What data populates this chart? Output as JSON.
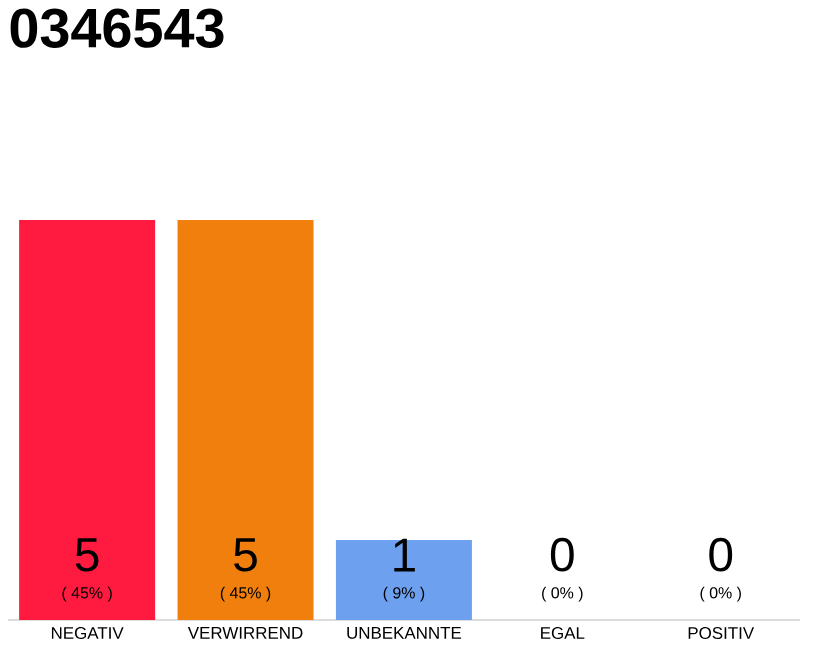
{
  "chart_data": {
    "type": "bar",
    "title": "0346543",
    "categories": [
      "NEGATIV",
      "VERWIRREND",
      "UNBEKANNTE",
      "EGAL",
      "POSITIV"
    ],
    "values": [
      5,
      5,
      1,
      0,
      0
    ],
    "colors": [
      "#ff1a40",
      "#f07f0e",
      "#6ea0f0",
      "#efefef",
      "#efefef"
    ],
    "ylim": [
      0,
      5
    ],
    "data_labels": true,
    "annotations": [
      "( 45% )",
      "( 45% )",
      "( 9% )",
      "( 0% )",
      "( 0% )"
    ]
  }
}
